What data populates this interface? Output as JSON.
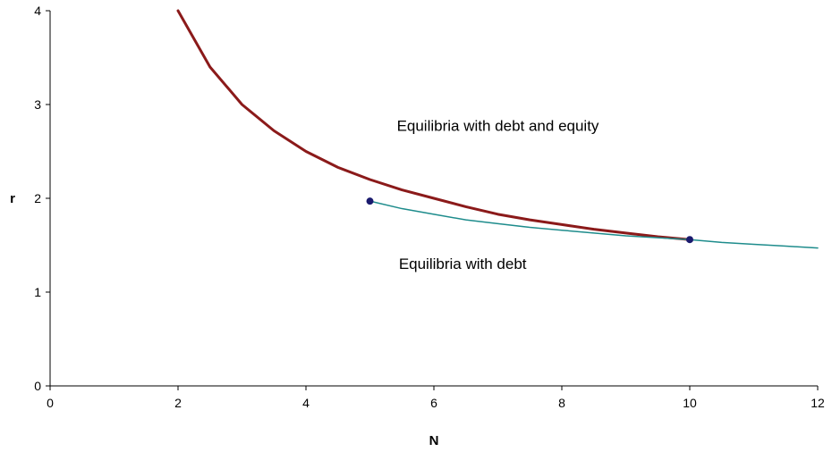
{
  "chart_data": {
    "type": "line",
    "xlabel": "N",
    "ylabel": "r",
    "xlim": [
      0,
      12
    ],
    "ylim": [
      0,
      4
    ],
    "x_ticks": [
      0,
      2,
      4,
      6,
      8,
      10,
      12
    ],
    "y_ticks": [
      0,
      1,
      2,
      3,
      4
    ],
    "grid": false,
    "legend": "none",
    "series": [
      {
        "color": "#8B1A1A",
        "x": [
          2,
          2.5,
          3,
          3.5,
          4,
          4.5,
          5,
          5.5,
          6,
          6.5,
          7,
          7.5,
          8,
          8.5,
          9,
          9.5,
          10
        ],
        "y": [
          4.0,
          3.4,
          3.0,
          2.72,
          2.5,
          2.33,
          2.2,
          2.09,
          2.0,
          1.91,
          1.83,
          1.77,
          1.72,
          1.67,
          1.63,
          1.59,
          1.56
        ]
      },
      {
        "color": "#1E8C8C",
        "x": [
          5,
          5.5,
          6,
          6.5,
          7,
          7.5,
          8,
          8.5,
          9,
          9.5,
          10,
          10.5,
          11,
          11.5,
          12
        ],
        "y": [
          1.97,
          1.89,
          1.83,
          1.77,
          1.73,
          1.69,
          1.66,
          1.63,
          1.6,
          1.58,
          1.56,
          1.53,
          1.51,
          1.49,
          1.47
        ]
      }
    ],
    "points": [
      {
        "x": 5,
        "y": 1.97,
        "color": "#1A1A6E"
      },
      {
        "x": 10,
        "y": 1.56,
        "color": "#1A1A6E"
      }
    ],
    "annotations": [
      {
        "text": "Equilibria with debt and equity",
        "x": 7.0,
        "y": 2.72
      },
      {
        "text": "Equilibria with debt",
        "x": 6.45,
        "y": 1.25
      }
    ]
  }
}
